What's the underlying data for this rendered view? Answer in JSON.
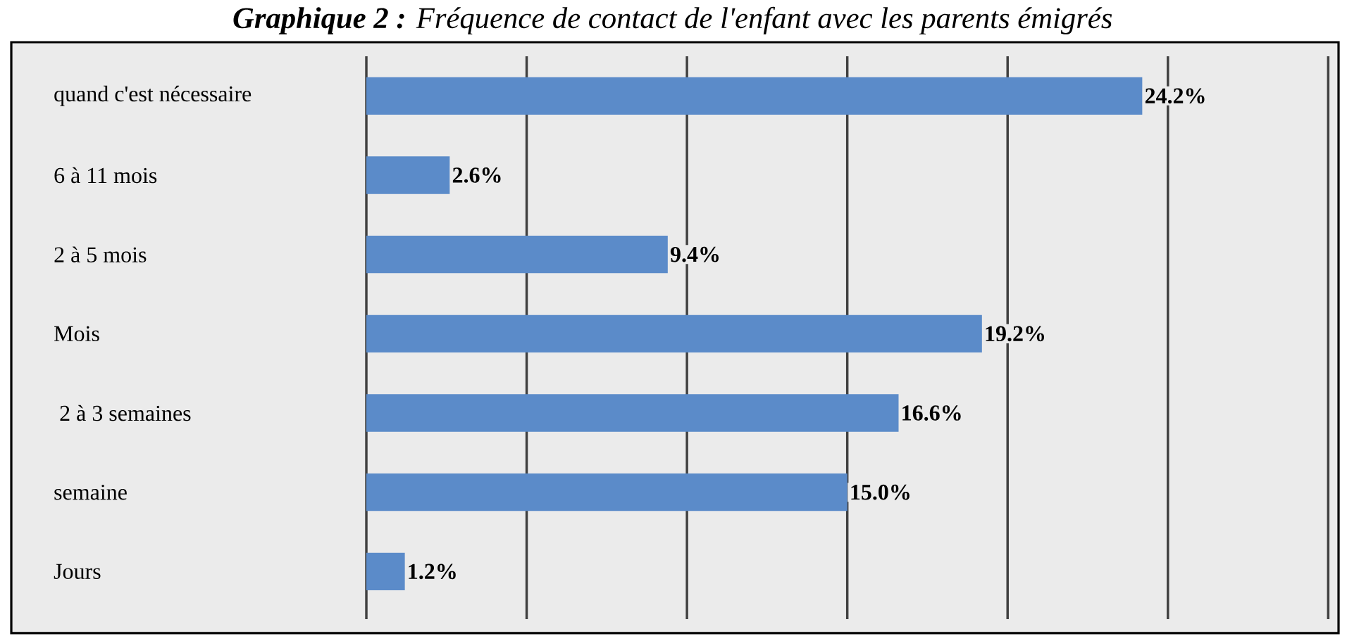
{
  "chart_data": {
    "type": "bar",
    "orientation": "horizontal",
    "title": "**Graphique 2 :** Fréquence de contact de l'enfant avec les parents émigrés",
    "categories": [
      "quand c'est nécessaire",
      "6 à 11 mois",
      "2 à 5 mois",
      "Mois",
      " 2 à 3 semaines",
      "semaine",
      "Jours"
    ],
    "values": [
      24.2,
      2.6,
      9.4,
      19.2,
      16.6,
      15.0,
      1.2
    ],
    "value_labels": [
      "24.2%",
      "2.6%",
      "9.4%",
      "19.2%",
      "16.6%",
      "15.0%",
      "1.2%"
    ],
    "color": "#5b8bc9",
    "xlim": [
      0,
      30
    ],
    "xticks": [
      {
        "value": 0,
        "label": null
      },
      {
        "value": 5,
        "label": null
      },
      {
        "value": 10,
        "label": null
      },
      {
        "value": 15,
        "label": null
      },
      {
        "value": 20,
        "label": null
      },
      {
        "value": 25,
        "label": null
      },
      {
        "value": 30,
        "label": null
      }
    ],
    "tick_labels": "y",
    "grid": "x"
  }
}
